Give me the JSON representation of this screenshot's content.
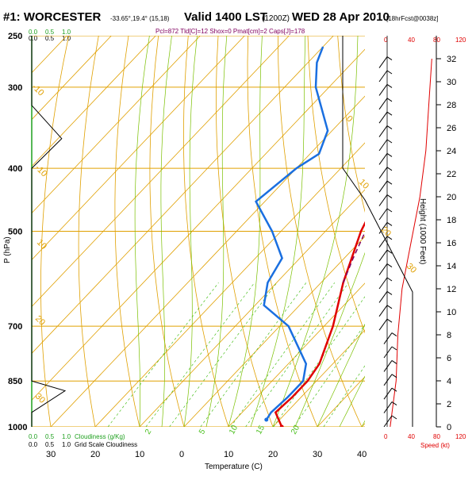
{
  "header": {
    "station": "#1: WORCESTER",
    "coords": "-33.65°,19.4° (15,18)",
    "valid": "Valid 1400 LST",
    "utc": "(1200Z)",
    "date": "WED 28 Apr 2010",
    "forecast": "[18hrFcst@0038z]",
    "indices": "Pcl=872 Tld[C]=12 Shox=0 Pmat[cm]=2 Caps[J]=178"
  },
  "colors": {
    "temperature": "#e00000",
    "dewpoint": "#1a6fe0",
    "parcel": "#800060",
    "isotherm_isobar": "#e0a000",
    "dry_adiabat": "#e0a000",
    "moist_adiabat": "#7ac000",
    "mixing_ratio": "#4cc020",
    "cloud": "#1fa01f",
    "wind_speed": "#e00000"
  },
  "labels": {
    "cloud_top_scale": [
      "0.0",
      "0.5",
      "1.0"
    ],
    "cloud_top_scale_b": [
      "0.0",
      "0.5",
      "1.0"
    ],
    "cloud_bottom_scale": [
      "0.0",
      "0.5",
      "1.0"
    ],
    "cloud_bottom_title": "Cloudiness (g/Kg)",
    "grid_scale_label": "Grid Scale Cloudiness",
    "cloud_bottom_scale_b": [
      "0.0",
      "0.5",
      "1.0"
    ],
    "speed_top_ticks": [
      "0",
      "40",
      "80",
      "120"
    ],
    "speed_bottom_ticks": [
      "0",
      "40",
      "80",
      "120"
    ],
    "speed_label": "Speed (kt)",
    "height_label": "Height (1000 Feet)",
    "height_ticks": [
      "0",
      "2",
      "4",
      "6",
      "8",
      "10",
      "12",
      "14",
      "16",
      "18",
      "20",
      "22",
      "24",
      "26",
      "28",
      "30",
      "32"
    ],
    "dry_adiabat_labels": [
      "0",
      "10",
      "20",
      "30"
    ],
    "isotherm_labels": [
      "-10",
      "-10",
      "10",
      "20",
      "30"
    ],
    "mixing_labels": [
      "2",
      "5",
      "10",
      "15",
      "20"
    ]
  },
  "chart_data": {
    "type": "line",
    "title": "#1: WORCESTER Valid 1400 LST (1200Z) WED 28 Apr 2010",
    "xlabel": "Temperature (C)",
    "ylabel": "P (hPa)",
    "y_scale": "log",
    "ylim": [
      1000,
      250
    ],
    "x_ticks_bottom": [
      "30",
      "20",
      "10",
      "0",
      "10",
      "20",
      "30",
      "40"
    ],
    "x_tick_values": [
      -30,
      -20,
      -10,
      0,
      10,
      20,
      30,
      40
    ],
    "pressure_ticks": [
      250,
      300,
      400,
      500,
      700,
      850,
      1000
    ],
    "skew": "skew-T log-P",
    "series": [
      {
        "name": "Temperature",
        "points": [
          [
            1000,
            22
          ],
          [
            950,
            17.5
          ],
          [
            900,
            18
          ],
          [
            850,
            18
          ],
          [
            800,
            17
          ],
          [
            700,
            12
          ],
          [
            600,
            5
          ],
          [
            500,
            -2
          ],
          [
            450,
            -5
          ],
          [
            400,
            -10
          ],
          [
            350,
            -17
          ],
          [
            300,
            -25
          ],
          [
            270,
            -31
          ]
        ]
      },
      {
        "name": "Dewpoint",
        "points": [
          [
            975,
            17
          ],
          [
            950,
            16.5
          ],
          [
            900,
            17
          ],
          [
            850,
            17
          ],
          [
            800,
            14
          ],
          [
            700,
            2
          ],
          [
            650,
            -8
          ],
          [
            600,
            -12
          ],
          [
            550,
            -14
          ],
          [
            500,
            -22
          ],
          [
            450,
            -32
          ],
          [
            400,
            -30
          ],
          [
            380,
            -28
          ],
          [
            350,
            -31
          ],
          [
            300,
            -43
          ],
          [
            275,
            -48
          ],
          [
            260,
            -50
          ]
        ]
      },
      {
        "name": "Parcel",
        "points": [
          [
            600,
            5
          ],
          [
            550,
            2
          ],
          [
            500,
            -1
          ],
          [
            450,
            -4
          ],
          [
            400,
            -10
          ],
          [
            370,
            -15
          ]
        ]
      }
    ],
    "cloud_fraction_profile": [
      [
        1000,
        0.0
      ],
      [
        950,
        0.0
      ],
      [
        880,
        1.0
      ],
      [
        850,
        0.0
      ],
      [
        400,
        0.0
      ],
      [
        360,
        0.9
      ],
      [
        320,
        0.0
      ],
      [
        250,
        0.0
      ]
    ],
    "wind_speed_kt": [
      [
        0,
        5
      ],
      [
        4,
        15
      ],
      [
        8,
        18
      ],
      [
        12,
        25
      ],
      [
        16,
        40
      ],
      [
        20,
        55
      ],
      [
        24,
        65
      ],
      [
        28,
        70
      ],
      [
        32,
        75
      ]
    ]
  }
}
